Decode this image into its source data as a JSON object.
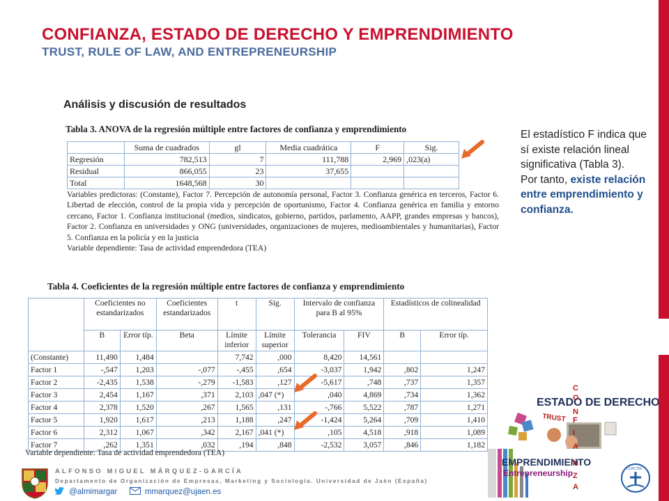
{
  "header": {
    "title": "CONFIANZA, ESTADO DE DERECHO Y EMPRENDIMIENTO",
    "subtitle": "TRUST, RULE OF LAW, AND ENTREPRENEURSHIP"
  },
  "section_heading": "Análisis y discusión de resultados",
  "table3": {
    "title": "Tabla 3. ANOVA de la regresión múltiple entre factores de confianza y emprendimiento",
    "headers": [
      "",
      "Suma de cuadrados",
      "gl",
      "Media cuadrática",
      "F",
      "Sig."
    ],
    "rows": [
      [
        "Regresión",
        "782,513",
        "7",
        "111,788",
        "2,969",
        ",023(a)"
      ],
      [
        "Residual",
        "866,055",
        "23",
        "37,655",
        "",
        ""
      ],
      [
        "Total",
        "1648,568",
        "30",
        "",
        "",
        ""
      ]
    ],
    "note_predictors": "Variables predictoras: (Constante), Factor 7. Percepción de autonomía personal, Factor 3. Confianza genérica en terceros, Factor 6. Libertad de elección, control de la propia vida y percepción de oportunismo, Factor 4. Confianza genérica en familia y entorno cercano, Factor 1. Confianza institucional (medios, sindicatos, gobierno, partidos, parlamento, AAPP, grandes empresas y bancos), Factor 2. Confianza en universidades y ONG (universidades, organizaciones de mujeres, medioambientales y humanitarias), Factor 5. Confianza en la policía y en la justicia",
    "note_dependent": "Variable dependiente: Tasa de actividad emprendedora (TEA)"
  },
  "table4": {
    "title": "Tabla 4. Coeficientes de la regresión múltiple entre factores de confianza y emprendimiento",
    "group_headers": {
      "nonstd": "Coeficientes no estandarizados",
      "std": "Coeficientes estandarizados",
      "t": "t",
      "sig": "Sig.",
      "ci": "Intervalo de confianza para B al 95%",
      "colin": "Estadísticos de colinealidad"
    },
    "sub_headers": [
      "B",
      "Error típ.",
      "Beta",
      "Límite inferior",
      "Límite superior",
      "Tolerancia",
      "FIV",
      "B",
      "Error típ."
    ],
    "rows": [
      [
        "(Constante)",
        "11,490",
        "1,484",
        "",
        "7,742",
        ",000",
        "8,420",
        "14,561",
        "",
        ""
      ],
      [
        "Factor 1",
        "-,547",
        "1,203",
        "-,077",
        "-,455",
        ",654",
        "-3,037",
        "1,942",
        ",802",
        "1,247"
      ],
      [
        "Factor 2",
        "-2,435",
        "1,538",
        "-,279",
        "-1,583",
        ",127",
        "-5,617",
        ",748",
        ",737",
        "1,357"
      ],
      [
        "Factor 3",
        "2,454",
        "1,167",
        ",371",
        "2,103",
        ",047 (*)",
        ",040",
        "4,869",
        ",734",
        "1,362"
      ],
      [
        "Factor 4",
        "2,378",
        "1,520",
        ",267",
        "1,565",
        ",131",
        "-,766",
        "5,522",
        ",787",
        "1,271"
      ],
      [
        "Factor 5",
        "1,920",
        "1,617",
        ",213",
        "1,188",
        ",247",
        "-1,424",
        "5,264",
        ",709",
        "1,410"
      ],
      [
        "Factor 6",
        "2,312",
        "1,067",
        ",342",
        "2,167",
        ",041 (*)",
        ",105",
        "4,518",
        ",918",
        "1,089"
      ],
      [
        "Factor 7",
        ",262",
        "1,351",
        ",032",
        ",194",
        ",848",
        "-2,532",
        "3,057",
        ",846",
        "1,182"
      ]
    ],
    "note": "Variable dependiente: Tasa de actividad emprendedora (TEA)"
  },
  "side_text": {
    "p1": "El estadístico F indica que sí existe relación lineal significativa (Tabla 3).",
    "p2_prefix": "Por tanto, ",
    "p2_highlight": "existe relación entre emprendimiento y confianza."
  },
  "footer": {
    "author": "ALFONSO MIGUEL MÁRQUEZ-GARCÍA",
    "department": "Departamento de Organización de Empresas, Marketing y Sociología. Universidad de Jaén (España)",
    "twitter": "@almimargar",
    "email": "mmarquez@ujaen.es"
  },
  "graphic": {
    "estado": "ESTADO DE DERECHO",
    "trust": "TRUST",
    "emprendimiento": "EMPRENDIMIENTO",
    "entrepreneurship": "Entrepreneurship",
    "confianza_letters": [
      "C",
      "O",
      "N",
      "F",
      "I",
      "A",
      "N",
      "Z",
      "A"
    ],
    "cuictid": "CUICTID"
  },
  "colors": {
    "accent_red": "#c8102e",
    "subtitle_blue": "#4a6b9d",
    "highlight_blue": "#1f4e8c",
    "arrow_orange": "#e86a2a"
  }
}
